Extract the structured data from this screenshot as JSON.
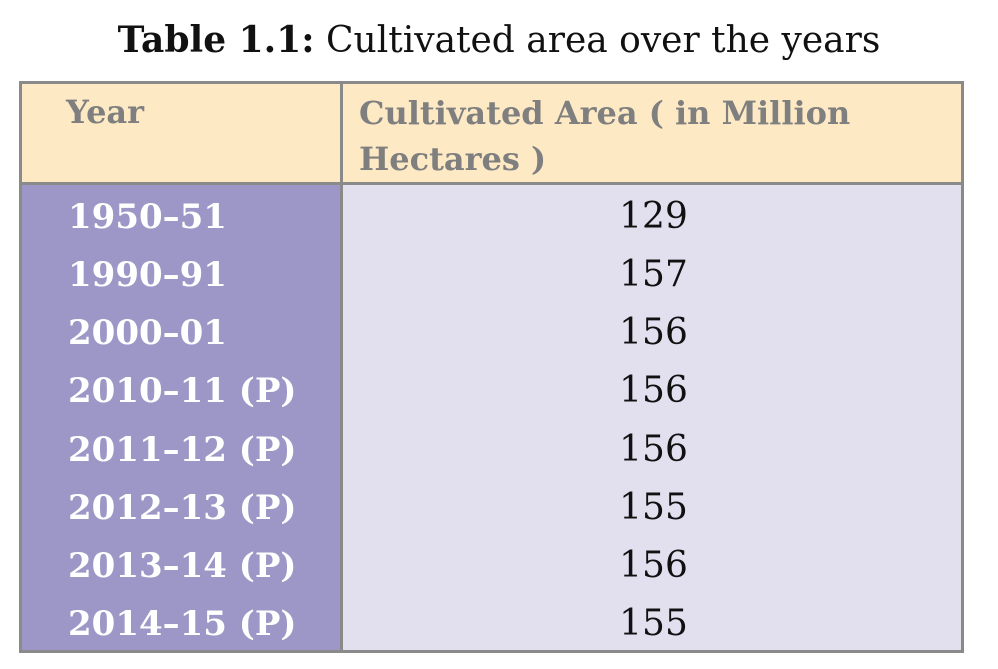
{
  "caption": {
    "label": "Table 1.1:",
    "text": "Cultivated area over the years"
  },
  "table": {
    "headers": {
      "year": "Year",
      "area": "Cultivated Area ( in Million Hectares )"
    },
    "rows": [
      {
        "year": "1950–51",
        "area": "129"
      },
      {
        "year": "1990–91",
        "area": "157"
      },
      {
        "year": "2000–01",
        "area": "156"
      },
      {
        "year": "2010–11 (P)",
        "area": "156"
      },
      {
        "year": "2011–12 (P)",
        "area": "156"
      },
      {
        "year": "2012–13 (P)",
        "area": "155"
      },
      {
        "year": "2013–14 (P)",
        "area": "156"
      },
      {
        "year": "2014–15 (P)",
        "area": "155"
      }
    ],
    "colors": {
      "header_bg": "#fde9c4",
      "year_col_bg": "#9c97c6",
      "value_col_bg": "#e2dfef",
      "border": "#8a8a8a"
    }
  }
}
